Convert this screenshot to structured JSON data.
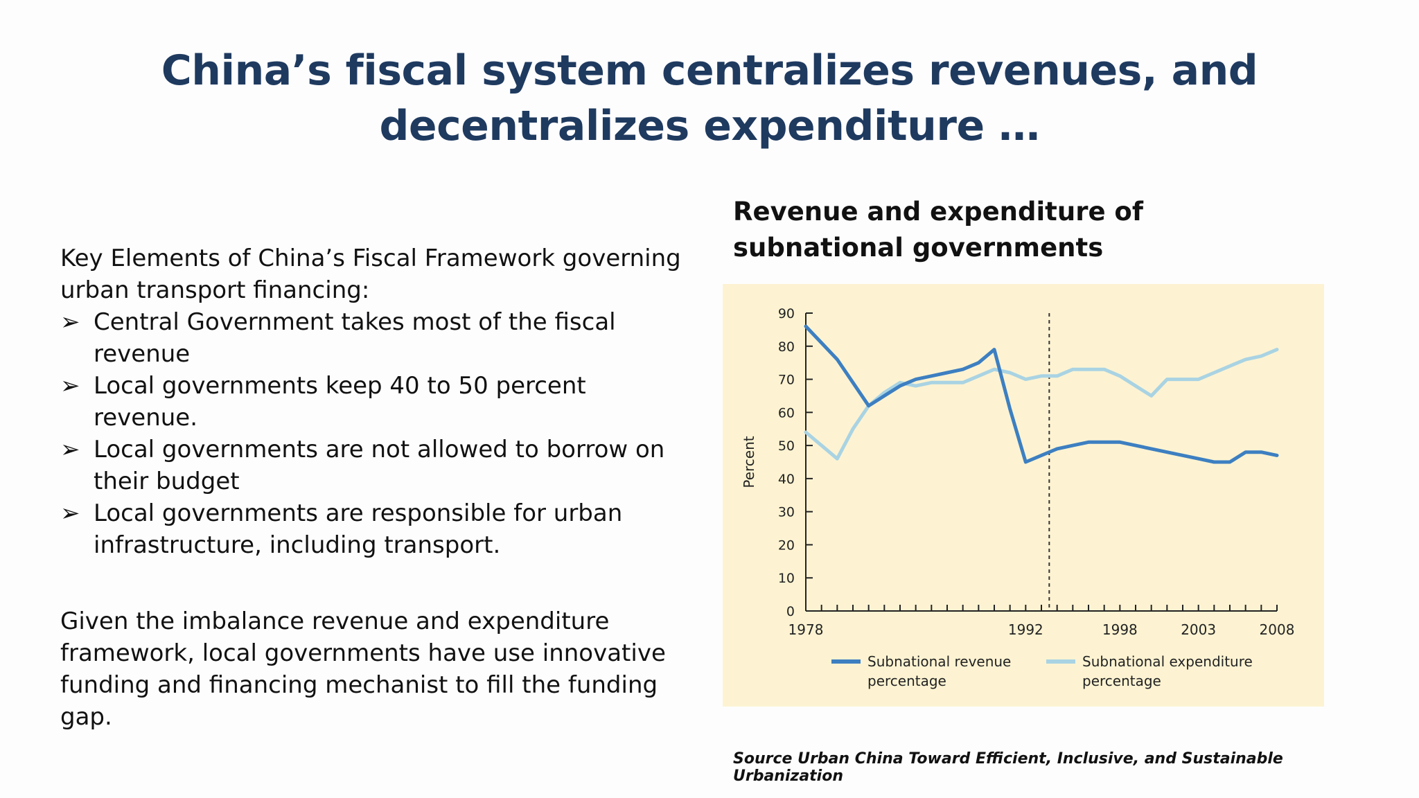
{
  "slide": {
    "title": "China’s fiscal system centralizes revenues, and decentralizes expenditure …",
    "intro": "Key Elements of China’s Fiscal Framework governing urban transport financing:",
    "bullet_glyph": "➢",
    "bullets": [
      "Central Government takes most of the fiscal revenue",
      "Local governments keep 40 to 50 percent revenue.",
      "Local governments are not allowed to borrow on their budget",
      "Local governments are responsible for urban infrastructure, including transport."
    ],
    "closing": "Given the imbalance revenue and expenditure framework,  local governments have use innovative funding and financing mechanist to fill the funding gap.",
    "source": "Source Urban China Toward Efficient, Inclusive, and Sustainable Urbanization"
  },
  "chart_data": {
    "type": "line",
    "title": "Revenue and expenditure of subnational governments",
    "xlabel": "",
    "ylabel": "Percent",
    "x": [
      1978,
      1979,
      1980,
      1981,
      1982,
      1983,
      1984,
      1985,
      1986,
      1987,
      1988,
      1989,
      1990,
      1991,
      1992,
      1993,
      1994,
      1995,
      1996,
      1997,
      1998,
      1999,
      2000,
      2001,
      2002,
      2003,
      2004,
      2005,
      2006,
      2007,
      2008
    ],
    "xlim": [
      1978,
      2008
    ],
    "xticks_labeled": [
      1978,
      1992,
      1998,
      2003,
      2008
    ],
    "ylim": [
      0,
      90
    ],
    "yticks": [
      0,
      10,
      20,
      30,
      40,
      50,
      60,
      70,
      80,
      90
    ],
    "grid": false,
    "legend_position": "bottom",
    "reference_line": {
      "x": 1993.5,
      "style": "dashed"
    },
    "series": [
      {
        "name": "Subnational revenue percentage",
        "color": "#3d7fc1",
        "values": [
          86,
          81,
          76,
          69,
          62,
          65,
          68,
          70,
          71,
          72,
          73,
          75,
          79,
          61,
          45,
          47,
          49,
          50,
          51,
          51,
          51,
          50,
          49,
          48,
          47,
          46,
          45,
          45,
          48,
          48,
          47
        ]
      },
      {
        "name": "Subnational expenditure percentage",
        "color": "#a9d3e3",
        "values": [
          54,
          50,
          46,
          55,
          62,
          66,
          69,
          68,
          69,
          69,
          69,
          71,
          73,
          72,
          70,
          71,
          71,
          73,
          73,
          73,
          71,
          68,
          65,
          70,
          70,
          70,
          72,
          74,
          76,
          77,
          79
        ]
      }
    ]
  }
}
